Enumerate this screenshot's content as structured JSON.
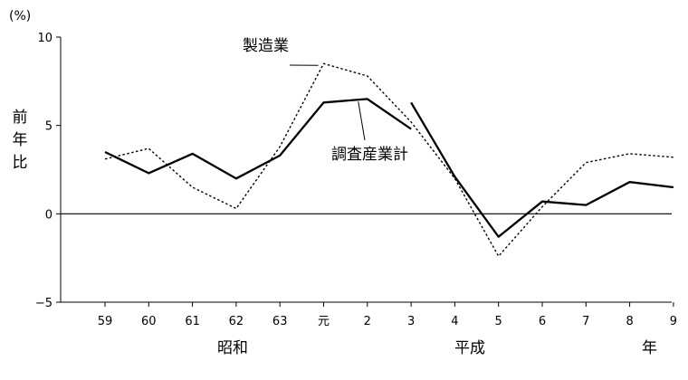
{
  "chart_data": {
    "type": "line",
    "title": "",
    "ylabel": "前年比",
    "yunit": "(%)",
    "ylim": [
      -5,
      10
    ],
    "yticks": [
      10,
      5,
      0,
      -5
    ],
    "categories": [
      "59",
      "60",
      "61",
      "62",
      "63",
      "元",
      "2",
      "3",
      "4",
      "5",
      "6",
      "7",
      "8",
      "9"
    ],
    "era_labels": [
      "昭和",
      "平成",
      "年"
    ],
    "series": [
      {
        "name": "製造業",
        "style": "dotted",
        "values": [
          3.1,
          3.7,
          1.5,
          0.3,
          3.8,
          8.5,
          7.8,
          5.2,
          2.0,
          -2.4,
          0.4,
          2.9,
          3.4,
          3.2
        ]
      },
      {
        "name": "調査産業計",
        "style": "solid",
        "segments": [
          {
            "start": 0,
            "values": [
              3.5,
              2.3,
              3.4,
              2.0,
              3.3,
              6.3,
              6.5,
              4.8
            ]
          },
          {
            "start": 7,
            "values": [
              6.3,
              2.1,
              -1.3,
              0.7,
              0.5,
              1.8,
              1.5
            ]
          }
        ]
      }
    ],
    "grid": false,
    "legend": "annotations"
  }
}
